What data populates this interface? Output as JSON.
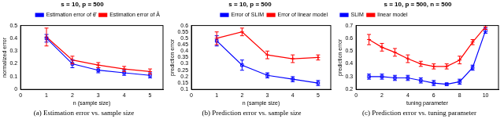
{
  "chart_data": [
    {
      "type": "line",
      "title": "s = 10, p = 500",
      "caption": "(a) Estimation error vs. sample size",
      "x_label": "n (sample size)",
      "y_label": "normalized error",
      "x": [
        1,
        2,
        3,
        4,
        5
      ],
      "xlim": [
        0,
        5.5
      ],
      "xticks": [
        0,
        1,
        2,
        3,
        4,
        5
      ],
      "ylim": [
        0,
        0.5
      ],
      "yticks": [
        0,
        0.1,
        0.2,
        0.3,
        0.4,
        0.5
      ],
      "grid": false,
      "legend": "upper right",
      "series": [
        {
          "name": "Estimation error of θ̂",
          "color": "#0000ff",
          "marker": "square",
          "line_style": "solid",
          "values": [
            0.4,
            0.2,
            0.15,
            0.13,
            0.11
          ],
          "errors": [
            0.03,
            0.03,
            0.02,
            0.02,
            0.02
          ]
        },
        {
          "name": "Estimation error of Â",
          "color": "#ff0000",
          "marker": "cross",
          "line_style": "solid",
          "values": [
            0.41,
            0.23,
            0.19,
            0.16,
            0.14
          ],
          "errors": [
            0.07,
            0.03,
            0.02,
            0.02,
            0.02
          ]
        }
      ]
    },
    {
      "type": "line",
      "title": "s = 10, p = 500",
      "caption": "(b) Prediction error vs. sample size",
      "x_label": "n (sample size)",
      "y_label": "prediction error",
      "x": [
        1,
        2,
        3,
        4,
        5
      ],
      "xlim": [
        0,
        5.5
      ],
      "xticks": [
        0,
        1,
        2,
        3,
        4,
        5
      ],
      "ylim": [
        0.1,
        0.6
      ],
      "yticks": [
        0.1,
        0.15,
        0.2,
        0.25,
        0.3,
        0.35,
        0.4,
        0.45,
        0.5,
        0.55,
        0.6
      ],
      "grid": false,
      "legend": "upper right",
      "series": [
        {
          "name": "Error of SLIM",
          "color": "#0000ff",
          "marker": "square",
          "line_style": "solid",
          "values": [
            0.48,
            0.29,
            0.21,
            0.18,
            0.15
          ],
          "errors": [
            0.04,
            0.04,
            0.02,
            0.02,
            0.02
          ]
        },
        {
          "name": "Error of linear model",
          "color": "#ff0000",
          "marker": "cross",
          "line_style": "solid",
          "values": [
            0.5,
            0.55,
            0.37,
            0.34,
            0.35
          ],
          "errors": [
            0.05,
            0.03,
            0.03,
            0.03,
            0.02
          ]
        }
      ]
    },
    {
      "type": "line",
      "title": "s = 10, p = 500, n = 500",
      "caption": "(c) Prediction error vs. tuning parameter",
      "x_label": "tuning parameter",
      "y_label": "prediction error",
      "x": [
        1,
        2,
        3,
        4,
        5,
        6,
        7,
        8,
        9,
        10
      ],
      "xlim": [
        0,
        11
      ],
      "xticks": [
        0,
        2,
        4,
        6,
        8,
        10
      ],
      "ylim": [
        0.2,
        0.7
      ],
      "yticks": [
        0.2,
        0.3,
        0.4,
        0.5,
        0.6,
        0.7
      ],
      "grid": false,
      "legend": "upper left",
      "series": [
        {
          "name": "SLIM",
          "color": "#0000ff",
          "marker": "square",
          "line_style": "solid",
          "values": [
            0.3,
            0.3,
            0.29,
            0.29,
            0.27,
            0.25,
            0.24,
            0.26,
            0.37,
            0.66
          ],
          "errors": [
            0.02,
            0.02,
            0.02,
            0.02,
            0.02,
            0.02,
            0.01,
            0.02,
            0.02,
            0.02
          ]
        },
        {
          "name": "linear model",
          "color": "#ff0000",
          "marker": "cross",
          "line_style": "solid",
          "values": [
            0.59,
            0.53,
            0.49,
            0.44,
            0.4,
            0.38,
            0.38,
            0.43,
            0.57,
            0.69
          ],
          "errors": [
            0.04,
            0.03,
            0.03,
            0.03,
            0.02,
            0.02,
            0.02,
            0.03,
            0.02,
            0.02
          ]
        }
      ]
    }
  ]
}
